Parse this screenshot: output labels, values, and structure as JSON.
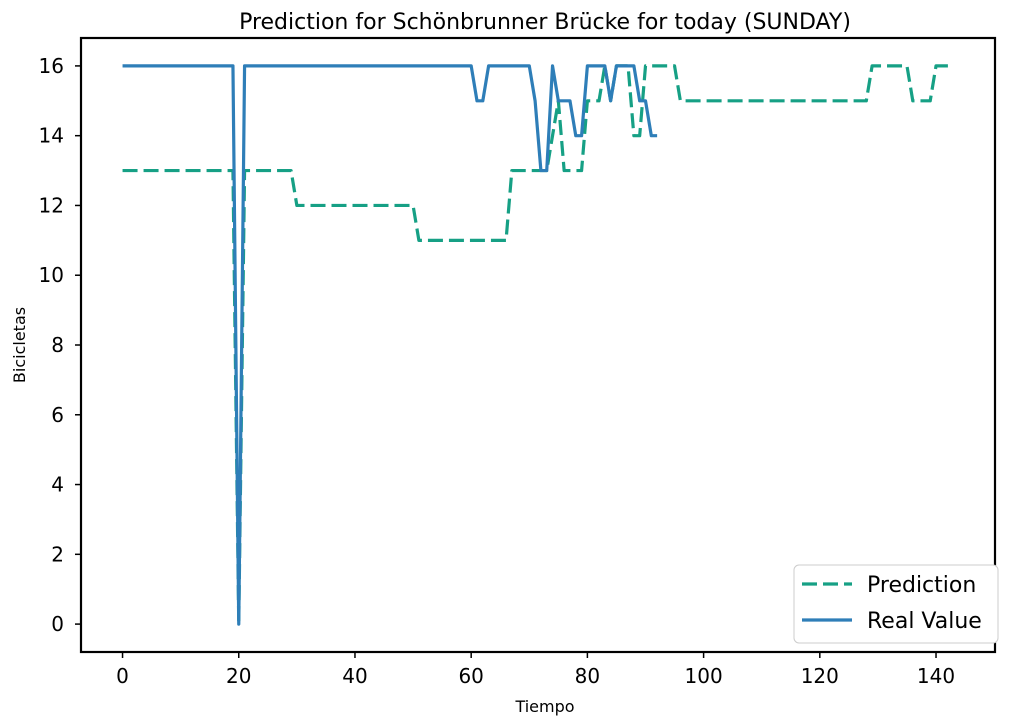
{
  "chart_data": {
    "type": "line",
    "title": "Prediction for Schönbrunner Brücke for today (SUNDAY)",
    "xlabel": "Tiempo",
    "ylabel": "Bicicletas",
    "xlim": [
      -7.15,
      150.15
    ],
    "ylim": [
      -0.8,
      16.8
    ],
    "xticks": [
      0,
      20,
      40,
      60,
      80,
      100,
      120,
      140
    ],
    "yticks": [
      0,
      2,
      4,
      6,
      8,
      10,
      12,
      14,
      16
    ],
    "grid": false,
    "legend_position": "lower-right",
    "series": [
      {
        "name": "Prediction",
        "color": "#16a085",
        "style": "dashed",
        "x": [
          0,
          19,
          20,
          21,
          29,
          30,
          50,
          51,
          66,
          67,
          73,
          74,
          75,
          76,
          79,
          80,
          82,
          83,
          84,
          85,
          86,
          87,
          88,
          89,
          90,
          95,
          96,
          128,
          129,
          135,
          136,
          139,
          140,
          143
        ],
        "y": [
          13,
          13,
          0,
          13,
          13,
          12,
          12,
          11,
          11,
          13,
          13,
          14,
          15,
          13,
          13,
          15,
          15,
          16,
          15,
          16,
          16,
          16,
          14,
          14,
          16,
          16,
          15,
          15,
          16,
          16,
          15,
          15,
          16,
          16
        ]
      },
      {
        "name": "Real Value",
        "color": "#2e7eb8",
        "style": "solid",
        "x": [
          0,
          19,
          20,
          21,
          60,
          61,
          62,
          63,
          70,
          71,
          72,
          73,
          74,
          75,
          77,
          78,
          79,
          80,
          83,
          84,
          85,
          88,
          89,
          90,
          91,
          92
        ],
        "y": [
          16,
          16,
          0,
          16,
          16,
          15,
          15,
          16,
          16,
          15,
          13,
          13,
          16,
          15,
          15,
          14,
          14,
          16,
          16,
          15,
          16,
          16,
          15,
          15,
          14,
          14
        ]
      }
    ]
  }
}
